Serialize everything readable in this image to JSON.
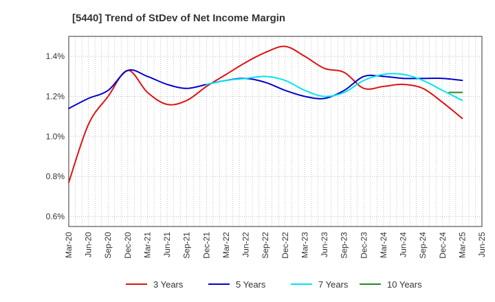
{
  "chart_data": {
    "type": "line",
    "title": "[5440]  Trend of StDev of Net Income Margin",
    "xlabel": "",
    "ylabel": "",
    "ylim": [
      0.55,
      1.5
    ],
    "y_ticks": [
      0.6,
      0.8,
      1.0,
      1.2,
      1.4
    ],
    "y_tick_labels": [
      "0.6%",
      "0.8%",
      "1.0%",
      "1.2%",
      "1.4%"
    ],
    "x_tick_labels": [
      "Mar-20",
      "Jun-20",
      "Sep-20",
      "Dec-20",
      "Mar-21",
      "Jun-21",
      "Sep-21",
      "Dec-21",
      "Mar-22",
      "Jun-22",
      "Sep-22",
      "Dec-22",
      "Mar-23",
      "Jun-23",
      "Sep-23",
      "Dec-23",
      "Mar-24",
      "Jun-24",
      "Sep-24",
      "Dec-24",
      "Mar-25",
      "Jun-25"
    ],
    "grid": true,
    "legend_position": "bottom",
    "series": [
      {
        "name": "3 Years",
        "color": "#dd1111",
        "x": [
          "2020-03",
          "2020-06",
          "2020-09",
          "2020-12",
          "2021-03",
          "2021-06",
          "2021-09",
          "2021-12",
          "2022-03",
          "2022-06",
          "2022-09",
          "2022-12",
          "2023-03",
          "2023-06",
          "2023-09",
          "2023-12",
          "2024-03",
          "2024-06",
          "2024-09",
          "2024-12",
          "2025-03"
        ],
        "values": [
          0.77,
          1.06,
          1.2,
          1.33,
          1.22,
          1.16,
          1.18,
          1.25,
          1.31,
          1.37,
          1.42,
          1.45,
          1.4,
          1.34,
          1.32,
          1.24,
          1.25,
          1.26,
          1.24,
          1.17,
          1.09
        ]
      },
      {
        "name": "5 Years",
        "color": "#0000cc",
        "x": [
          "2020-03",
          "2020-06",
          "2020-09",
          "2020-12",
          "2021-03",
          "2021-06",
          "2021-09",
          "2021-12",
          "2022-03",
          "2022-06",
          "2022-09",
          "2022-12",
          "2023-03",
          "2023-06",
          "2023-09",
          "2023-12",
          "2024-03",
          "2024-06",
          "2024-09",
          "2024-12",
          "2025-03"
        ],
        "values": [
          1.14,
          1.19,
          1.23,
          1.33,
          1.3,
          1.26,
          1.24,
          1.26,
          1.28,
          1.29,
          1.27,
          1.23,
          1.2,
          1.19,
          1.23,
          1.3,
          1.3,
          1.29,
          1.29,
          1.29,
          1.28
        ]
      },
      {
        "name": "7 Years",
        "color": "#00e5ee",
        "x": [
          "2021-12",
          "2022-03",
          "2022-06",
          "2022-09",
          "2022-12",
          "2023-03",
          "2023-06",
          "2023-09",
          "2023-12",
          "2024-03",
          "2024-06",
          "2024-09",
          "2024-12",
          "2025-03"
        ],
        "values": [
          1.26,
          1.28,
          1.29,
          1.3,
          1.28,
          1.23,
          1.2,
          1.22,
          1.28,
          1.31,
          1.31,
          1.28,
          1.23,
          1.18
        ]
      },
      {
        "name": "10 Years",
        "color": "#228822",
        "x": [
          "2025-01",
          "2025-03"
        ],
        "values": [
          1.22,
          1.22
        ]
      }
    ]
  }
}
